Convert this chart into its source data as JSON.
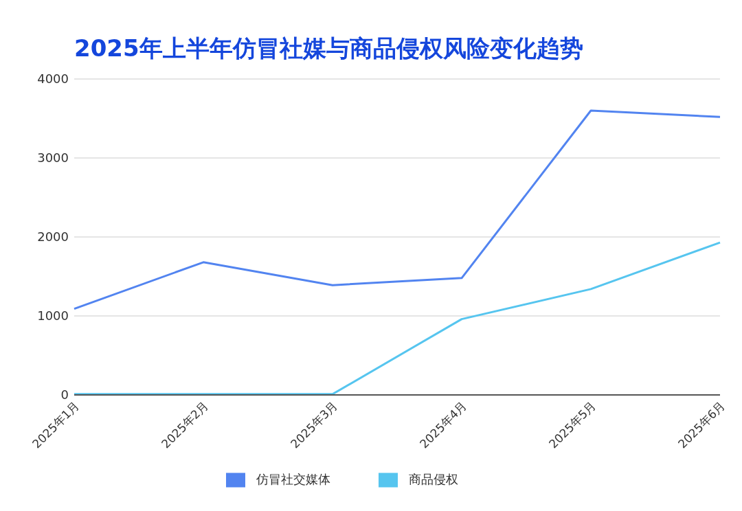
{
  "chart_data": {
    "type": "line",
    "title": "2025年上半年仿冒社媒与商品侵权风险变化趋势",
    "categories": [
      "2025年1月",
      "2025年2月",
      "2025年3月",
      "2025年4月",
      "2025年5月",
      "2025年6月"
    ],
    "series": [
      {
        "name": "仿冒社交媒体",
        "color": "#5284f0",
        "values": [
          1090,
          1680,
          1390,
          1480,
          3600,
          3520
        ]
      },
      {
        "name": "商品侵权",
        "color": "#56c5ef",
        "values": [
          10,
          10,
          10,
          960,
          1340,
          1930
        ]
      }
    ],
    "ylim": [
      0,
      4000
    ],
    "yticks": [
      0,
      1000,
      2000,
      3000,
      4000
    ],
    "grid": "y",
    "legend": "bottom",
    "marker": "none",
    "line_style": "solid"
  }
}
